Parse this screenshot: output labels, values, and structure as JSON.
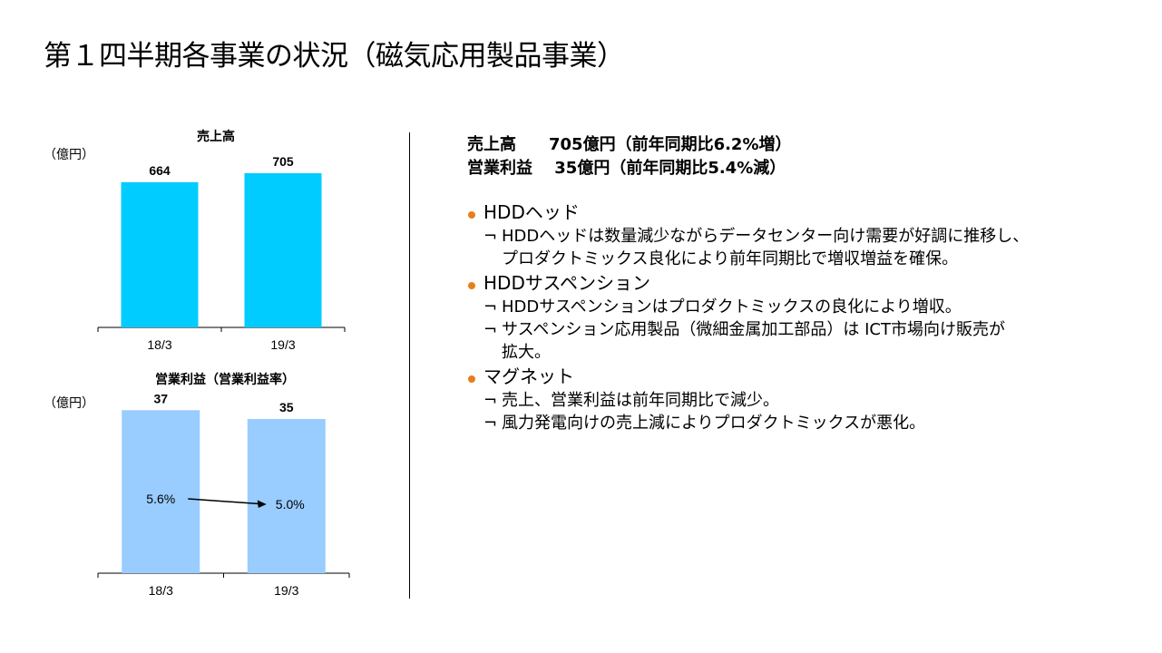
{
  "page": {
    "title": "第１四半期各事業の状況（磁気応用製品事業）"
  },
  "charts_text": {
    "sales": {
      "title": "売上高",
      "unit": "（億円）"
    },
    "profit": {
      "title": "営業利益（営業利益率）",
      "unit": "（億円）"
    }
  },
  "chart_data": [
    {
      "type": "bar",
      "title": "売上高",
      "ylabel": "（億円）",
      "categories": [
        "18/3",
        "19/3"
      ],
      "values": [
        664,
        705
      ],
      "data_labels": [
        "664",
        "705"
      ],
      "ylim": [
        0,
        850
      ],
      "color": "#00ccff",
      "grid": false
    },
    {
      "type": "bar",
      "title": "営業利益（営業利益率）",
      "ylabel": "（億円）",
      "categories": [
        "18/3",
        "19/3"
      ],
      "values": [
        37,
        35
      ],
      "data_labels": [
        "37",
        "35"
      ],
      "margin_labels": [
        "5.6%",
        "5.0%"
      ],
      "margins": [
        5.6,
        5.0
      ],
      "ylim": [
        0,
        42
      ],
      "color": "#99ccff",
      "grid": false
    }
  ],
  "summary": {
    "line1": "売上高　　705億円（前年同期比6.2%増）",
    "line2": "営業利益　 35億円（前年同期比5.4%減）"
  },
  "bullet_mark": "¬",
  "bullet_color": "#e87f1a",
  "sections": [
    {
      "heading": "HDDヘッド",
      "items": [
        "HDDヘッドは数量減少ながらデータセンター向け需要が好調に推移し、\nプロダクトミックス良化により前年同期比で増収増益を確保。"
      ]
    },
    {
      "heading": "HDDサスペンション",
      "items": [
        "HDDサスペンションはプロダクトミックスの良化により増収。",
        "サスペンション応用製品（微細金属加工部品）は ICT市場向け販売が\n拡大。"
      ]
    },
    {
      "heading": "マグネット",
      "items": [
        "売上、営業利益は前年同期比で減少。",
        "風力発電向けの売上減によりプロダクトミックスが悪化。"
      ]
    }
  ]
}
